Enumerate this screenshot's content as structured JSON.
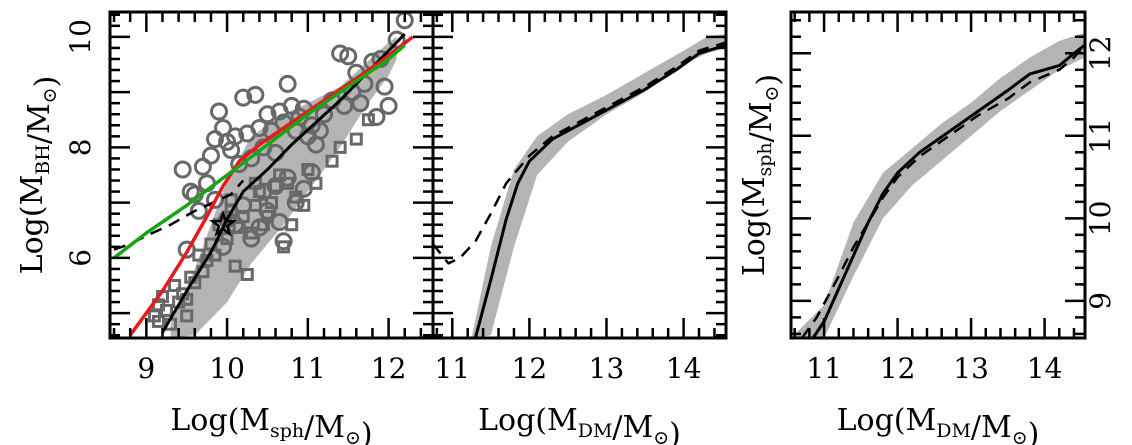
{
  "chart_data": [
    {
      "type": "scatter",
      "xlabel": "Log(M_sph/M_⊙)",
      "ylabel": "Log(M_BH/M_⊙)",
      "xlim": [
        8.55,
        12.55
      ],
      "ylim": [
        4.55,
        10.45
      ],
      "xticks": [
        "9",
        "10",
        "11",
        "12"
      ],
      "yticks": [
        "6",
        "8",
        "10"
      ],
      "band": {
        "x": [
          9.3,
          9.6,
          10.0,
          10.3,
          10.7,
          11.0,
          11.4,
          11.7,
          12.0,
          12.1
        ],
        "low": [
          4.55,
          4.6,
          5.2,
          5.9,
          6.6,
          7.2,
          8.0,
          8.7,
          9.3,
          9.6
        ],
        "high": [
          4.8,
          5.8,
          7.4,
          8.2,
          8.6,
          8.8,
          9.1,
          9.5,
          9.9,
          10.0
        ]
      },
      "series": [
        {
          "x": [
            8.6,
            8.8,
            9.0,
            9.3,
            9.6,
            9.9,
            10.05,
            10.2
          ],
          "y": [
            6.15,
            6.25,
            6.4,
            6.6,
            6.85,
            7.05,
            7.15,
            7.4
          ]
        },
        {
          "x": [
            9.2,
            9.5,
            9.8,
            10.0,
            10.2,
            10.5,
            10.8,
            11.1,
            11.4,
            11.7,
            12.0,
            12.2
          ],
          "y": [
            4.65,
            5.4,
            6.1,
            6.7,
            7.2,
            7.6,
            8.05,
            8.45,
            8.85,
            9.3,
            9.75,
            10.05
          ]
        },
        {
          "x": [
            8.8,
            9.2,
            9.5,
            9.75,
            9.95,
            10.15,
            10.4,
            10.7,
            11.0,
            11.3,
            11.6,
            11.9,
            12.3
          ],
          "y": [
            4.6,
            5.4,
            6.1,
            6.75,
            7.3,
            7.75,
            8.05,
            8.35,
            8.65,
            8.95,
            9.25,
            9.55,
            10.0
          ]
        },
        {
          "x": [
            8.6,
            9.0,
            9.5,
            10.0,
            10.5,
            11.0,
            11.5,
            12.0,
            12.2
          ],
          "y": [
            6.0,
            6.45,
            6.95,
            7.5,
            8.05,
            8.6,
            9.1,
            9.6,
            9.85
          ]
        }
      ],
      "circles": [
        [
          9.45,
          7.6
        ],
        [
          9.55,
          7.2
        ],
        [
          9.6,
          7.15
        ],
        [
          9.7,
          7.65
        ],
        [
          9.75,
          7.35
        ],
        [
          9.8,
          7.85
        ],
        [
          9.85,
          8.15
        ],
        [
          9.9,
          8.65
        ],
        [
          9.95,
          8.35
        ],
        [
          10.0,
          8.1
        ],
        [
          10.05,
          7.95
        ],
        [
          10.1,
          8.2
        ],
        [
          10.15,
          7.7
        ],
        [
          10.2,
          8.9
        ],
        [
          10.25,
          8.25
        ],
        [
          10.3,
          7.8
        ],
        [
          10.35,
          8.95
        ],
        [
          10.4,
          8.35
        ],
        [
          10.45,
          8.0
        ],
        [
          10.5,
          8.6
        ],
        [
          10.55,
          8.3
        ],
        [
          10.6,
          7.9
        ],
        [
          10.65,
          8.65
        ],
        [
          10.7,
          8.45
        ],
        [
          10.75,
          9.15
        ],
        [
          10.8,
          8.75
        ],
        [
          10.85,
          8.3
        ],
        [
          10.9,
          8.55
        ],
        [
          10.95,
          8.7
        ],
        [
          11.0,
          8.2
        ],
        [
          11.05,
          8.4
        ],
        [
          11.1,
          8.05
        ],
        [
          11.15,
          8.3
        ],
        [
          11.2,
          8.6
        ],
        [
          11.3,
          8.85
        ],
        [
          11.4,
          9.7
        ],
        [
          11.45,
          8.75
        ],
        [
          11.5,
          9.65
        ],
        [
          11.55,
          9.0
        ],
        [
          11.6,
          9.35
        ],
        [
          11.65,
          8.8
        ],
        [
          11.7,
          9.15
        ],
        [
          11.8,
          9.55
        ],
        [
          11.85,
          8.55
        ],
        [
          11.9,
          9.6
        ],
        [
          11.95,
          9.1
        ],
        [
          12.0,
          8.75
        ],
        [
          12.1,
          9.95
        ],
        [
          12.2,
          10.3
        ],
        [
          9.5,
          6.15
        ],
        [
          9.65,
          6.85
        ],
        [
          9.85,
          7.05
        ],
        [
          10.0,
          6.7
        ],
        [
          10.1,
          6.6
        ],
        [
          10.2,
          6.95
        ],
        [
          10.3,
          6.35
        ],
        [
          10.4,
          6.55
        ],
        [
          10.45,
          7.2
        ],
        [
          10.5,
          6.85
        ],
        [
          10.6,
          7.3
        ],
        [
          10.65,
          6.65
        ],
        [
          10.7,
          6.3
        ],
        [
          10.75,
          7.45
        ],
        [
          10.85,
          7.0
        ],
        [
          10.95,
          7.25
        ],
        [
          11.05,
          7.55
        ],
        [
          9.95,
          6.2
        ]
      ],
      "squares": [
        [
          9.1,
          4.95
        ],
        [
          9.15,
          5.15
        ],
        [
          9.15,
          4.85
        ],
        [
          9.2,
          5.3
        ],
        [
          9.25,
          5.05
        ],
        [
          9.3,
          4.8
        ],
        [
          9.35,
          5.5
        ],
        [
          9.4,
          5.2
        ],
        [
          9.45,
          5.35
        ],
        [
          9.5,
          5.25
        ],
        [
          9.5,
          4.95
        ],
        [
          9.55,
          5.65
        ],
        [
          9.6,
          5.55
        ],
        [
          9.65,
          6.05
        ],
        [
          9.7,
          5.75
        ],
        [
          9.75,
          5.95
        ],
        [
          9.8,
          6.25
        ],
        [
          9.85,
          6.05
        ],
        [
          9.9,
          6.6
        ],
        [
          10.0,
          6.35
        ],
        [
          10.05,
          7.05
        ],
        [
          10.1,
          5.85
        ],
        [
          10.15,
          6.55
        ],
        [
          10.2,
          6.75
        ],
        [
          10.25,
          5.7
        ],
        [
          10.3,
          6.45
        ],
        [
          10.35,
          6.95
        ],
        [
          10.4,
          7.2
        ],
        [
          10.45,
          6.6
        ],
        [
          10.5,
          6.75
        ],
        [
          10.55,
          7.0
        ],
        [
          10.6,
          7.3
        ],
        [
          10.65,
          7.5
        ],
        [
          10.7,
          6.2
        ],
        [
          10.75,
          7.35
        ],
        [
          10.8,
          6.6
        ],
        [
          10.85,
          7.1
        ],
        [
          10.95,
          6.95
        ],
        [
          11.0,
          7.6
        ],
        [
          11.1,
          7.35
        ],
        [
          11.3,
          7.75
        ],
        [
          11.4,
          8.0
        ],
        [
          11.6,
          8.15
        ],
        [
          11.75,
          8.5
        ],
        [
          10.05,
          6.85
        ],
        [
          10.35,
          7.35
        ]
      ],
      "star": [
        9.95,
        6.6
      ]
    },
    {
      "type": "line",
      "xlabel": "Log(M_DM/M_⊙)",
      "xlim": [
        10.75,
        14.55
      ],
      "ylim": [
        4.55,
        10.45
      ],
      "xticks": [
        "11",
        "12",
        "13",
        "14"
      ],
      "band": {
        "x": [
          11.25,
          11.5,
          11.8,
          12.1,
          12.5,
          13.0,
          13.5,
          14.0,
          14.3,
          14.55
        ],
        "low": [
          4.55,
          4.6,
          6.2,
          7.5,
          8.1,
          8.6,
          9.0,
          9.5,
          9.7,
          9.8
        ],
        "high": [
          4.55,
          6.2,
          7.6,
          8.2,
          8.6,
          8.95,
          9.35,
          9.75,
          10.0,
          10.05
        ]
      },
      "series": [
        {
          "x": [
            11.3,
            11.5,
            11.7,
            11.85,
            12.0,
            12.3,
            12.7,
            13.1,
            13.5,
            13.9,
            14.2,
            14.55
          ],
          "y": [
            4.55,
            5.6,
            6.7,
            7.35,
            7.75,
            8.15,
            8.45,
            8.75,
            9.05,
            9.4,
            9.7,
            9.85
          ]
        },
        {
          "x": [
            10.75,
            10.95,
            11.1,
            11.3,
            11.5,
            11.7,
            12.0,
            12.3,
            12.7,
            13.1,
            13.5,
            13.9,
            14.2,
            14.55
          ],
          "y": [
            6.25,
            5.9,
            6.0,
            6.3,
            6.8,
            7.35,
            7.85,
            8.2,
            8.5,
            8.8,
            9.1,
            9.45,
            9.75,
            9.9
          ]
        }
      ]
    },
    {
      "type": "line",
      "xlabel": "Log(M_DM/M_⊙)",
      "ylabel": "Log(M_sph/M_⊙)",
      "xlim": [
        10.55,
        14.55
      ],
      "ylim": [
        8.55,
        12.5
      ],
      "xticks": [
        "11",
        "12",
        "13",
        "14"
      ],
      "yticks": [
        "9",
        "10",
        "11",
        "12"
      ],
      "band": {
        "x": [
          10.55,
          11.0,
          11.4,
          11.8,
          12.2,
          12.6,
          13.0,
          13.4,
          13.8,
          14.2,
          14.55
        ],
        "low": [
          8.55,
          8.55,
          9.3,
          10.0,
          10.4,
          10.7,
          11.0,
          11.3,
          11.55,
          11.8,
          11.95
        ],
        "high": [
          8.55,
          8.95,
          9.95,
          10.55,
          10.85,
          11.15,
          11.4,
          11.7,
          11.95,
          12.15,
          12.25
        ]
      },
      "series": [
        {
          "x": [
            10.85,
            11.0,
            11.2,
            11.4,
            11.6,
            11.8,
            12.0,
            12.3,
            12.7,
            13.1,
            13.5,
            13.8,
            14.2,
            14.4,
            14.55
          ],
          "y": [
            8.55,
            8.75,
            9.15,
            9.55,
            9.95,
            10.3,
            10.55,
            10.8,
            11.05,
            11.3,
            11.55,
            11.75,
            11.85,
            12.0,
            12.1
          ]
        },
        {
          "x": [
            10.7,
            10.9,
            11.2,
            11.4,
            11.6,
            11.8,
            12.0,
            12.3,
            12.7,
            13.1,
            13.5,
            13.8,
            14.2,
            14.4,
            14.55
          ],
          "y": [
            8.55,
            8.8,
            9.3,
            9.65,
            9.95,
            10.25,
            10.5,
            10.75,
            11.0,
            11.25,
            11.45,
            11.65,
            11.8,
            11.95,
            12.1
          ]
        }
      ]
    }
  ]
}
